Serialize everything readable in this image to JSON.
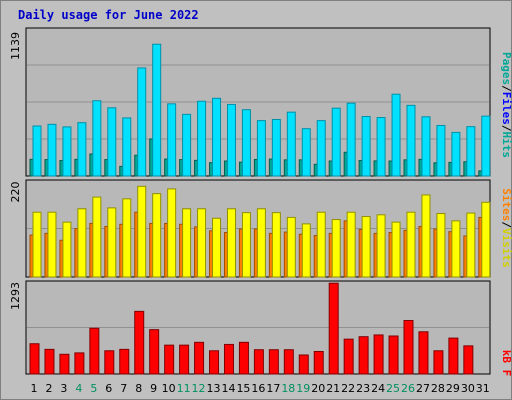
{
  "title": "Daily usage for June 2022",
  "chart_data": [
    {
      "type": "bar",
      "panel": "top",
      "y_tick_label": "1139",
      "ylim": [
        0,
        1139
      ],
      "grid": true,
      "x": [
        1,
        2,
        3,
        4,
        5,
        6,
        7,
        8,
        9,
        10,
        11,
        12,
        13,
        14,
        15,
        16,
        17,
        18,
        19,
        20,
        21,
        22,
        23,
        24,
        25,
        26,
        27,
        28,
        29,
        30,
        31
      ],
      "series": [
        {
          "name": "Pages",
          "color": "#00a898",
          "values": [
            130,
            128,
            121,
            130,
            172,
            128,
            75,
            162,
            289,
            132,
            128,
            122,
            104,
            117,
            108,
            129,
            132,
            126,
            126,
            91,
            117,
            185,
            121,
            118,
            117,
            126,
            130,
            103,
            106,
            111,
            40
          ]
        },
        {
          "name": "Files",
          "color": "#0000ff",
          "values": [
            0,
            0,
            0,
            0,
            0,
            0,
            0,
            0,
            0,
            0,
            0,
            0,
            0,
            0,
            0,
            0,
            0,
            0,
            0,
            0,
            0,
            0,
            0,
            0,
            0,
            0,
            0,
            0,
            0,
            0,
            0
          ]
        },
        {
          "name": "Hits",
          "color": "#00e0ff",
          "values": [
            390,
            403,
            383,
            416,
            587,
            532,
            453,
            843,
            1028,
            563,
            481,
            583,
            606,
            558,
            517,
            432,
            441,
            498,
            369,
            432,
            529,
            568,
            464,
            456,
            638,
            551,
            462,
            394,
            340,
            385,
            467
          ]
        }
      ]
    },
    {
      "type": "bar",
      "panel": "middle",
      "y_tick_label": "220",
      "ylim": [
        0,
        220
      ],
      "grid": true,
      "x": [
        1,
        2,
        3,
        4,
        5,
        6,
        7,
        8,
        9,
        10,
        11,
        12,
        13,
        14,
        15,
        16,
        17,
        18,
        19,
        20,
        21,
        22,
        23,
        24,
        25,
        26,
        27,
        28,
        29,
        30,
        31
      ],
      "series": [
        {
          "name": "Sites",
          "color": "#ff8000",
          "values": [
            97,
            101,
            85,
            112,
            124,
            117,
            122,
            150,
            124,
            124,
            122,
            116,
            107,
            103,
            111,
            111,
            101,
            104,
            99,
            96,
            101,
            130,
            110,
            101,
            103,
            108,
            117,
            111,
            105,
            95,
            138
          ]
        },
        {
          "name": "Visits",
          "color": "#ffff00",
          "values": [
            150,
            150,
            127,
            158,
            185,
            160,
            181,
            210,
            193,
            204,
            158,
            158,
            136,
            158,
            149,
            158,
            149,
            138,
            123,
            150,
            133,
            150,
            140,
            144,
            127,
            150,
            190,
            147,
            130,
            148,
            173
          ]
        }
      ]
    },
    {
      "type": "bar",
      "panel": "bottom",
      "y_tick_label": "1293",
      "ylim": [
        0,
        1293
      ],
      "grid": true,
      "x": [
        1,
        2,
        3,
        4,
        5,
        6,
        7,
        8,
        9,
        10,
        11,
        12,
        13,
        14,
        15,
        16,
        17,
        18,
        19,
        20,
        21,
        22,
        23,
        24,
        25,
        26,
        27,
        28,
        29,
        30,
        31
      ],
      "series": [
        {
          "name": "kB F",
          "color": "#ff0000",
          "values": [
            430,
            350,
            280,
            300,
            650,
            330,
            350,
            890,
            630,
            410,
            410,
            450,
            330,
            420,
            450,
            345,
            345,
            345,
            270,
            320,
            1290,
            495,
            530,
            555,
            540,
            760,
            600,
            330,
            510,
            400,
            0
          ]
        }
      ]
    }
  ],
  "x_label_colors": [
    "#000000",
    "#000000",
    "#000000",
    "#009060",
    "#009060",
    "#000000",
    "#000000",
    "#000000",
    "#000000",
    "#000000",
    "#009060",
    "#009060",
    "#000000",
    "#000000",
    "#000000",
    "#000000",
    "#000000",
    "#009060",
    "#009060",
    "#000000",
    "#000000",
    "#000000",
    "#000000",
    "#000000",
    "#009060",
    "#009060",
    "#000000",
    "#000000",
    "#000000",
    "#000000",
    "#000000"
  ],
  "right_labels": {
    "pages": "Pages",
    "sep1": "/",
    "files": "Files",
    "sep2": "/",
    "hits": "Hits",
    "sites": "Sites",
    "sep3": "/",
    "visits": "Visits",
    "kbf": "kB F"
  }
}
